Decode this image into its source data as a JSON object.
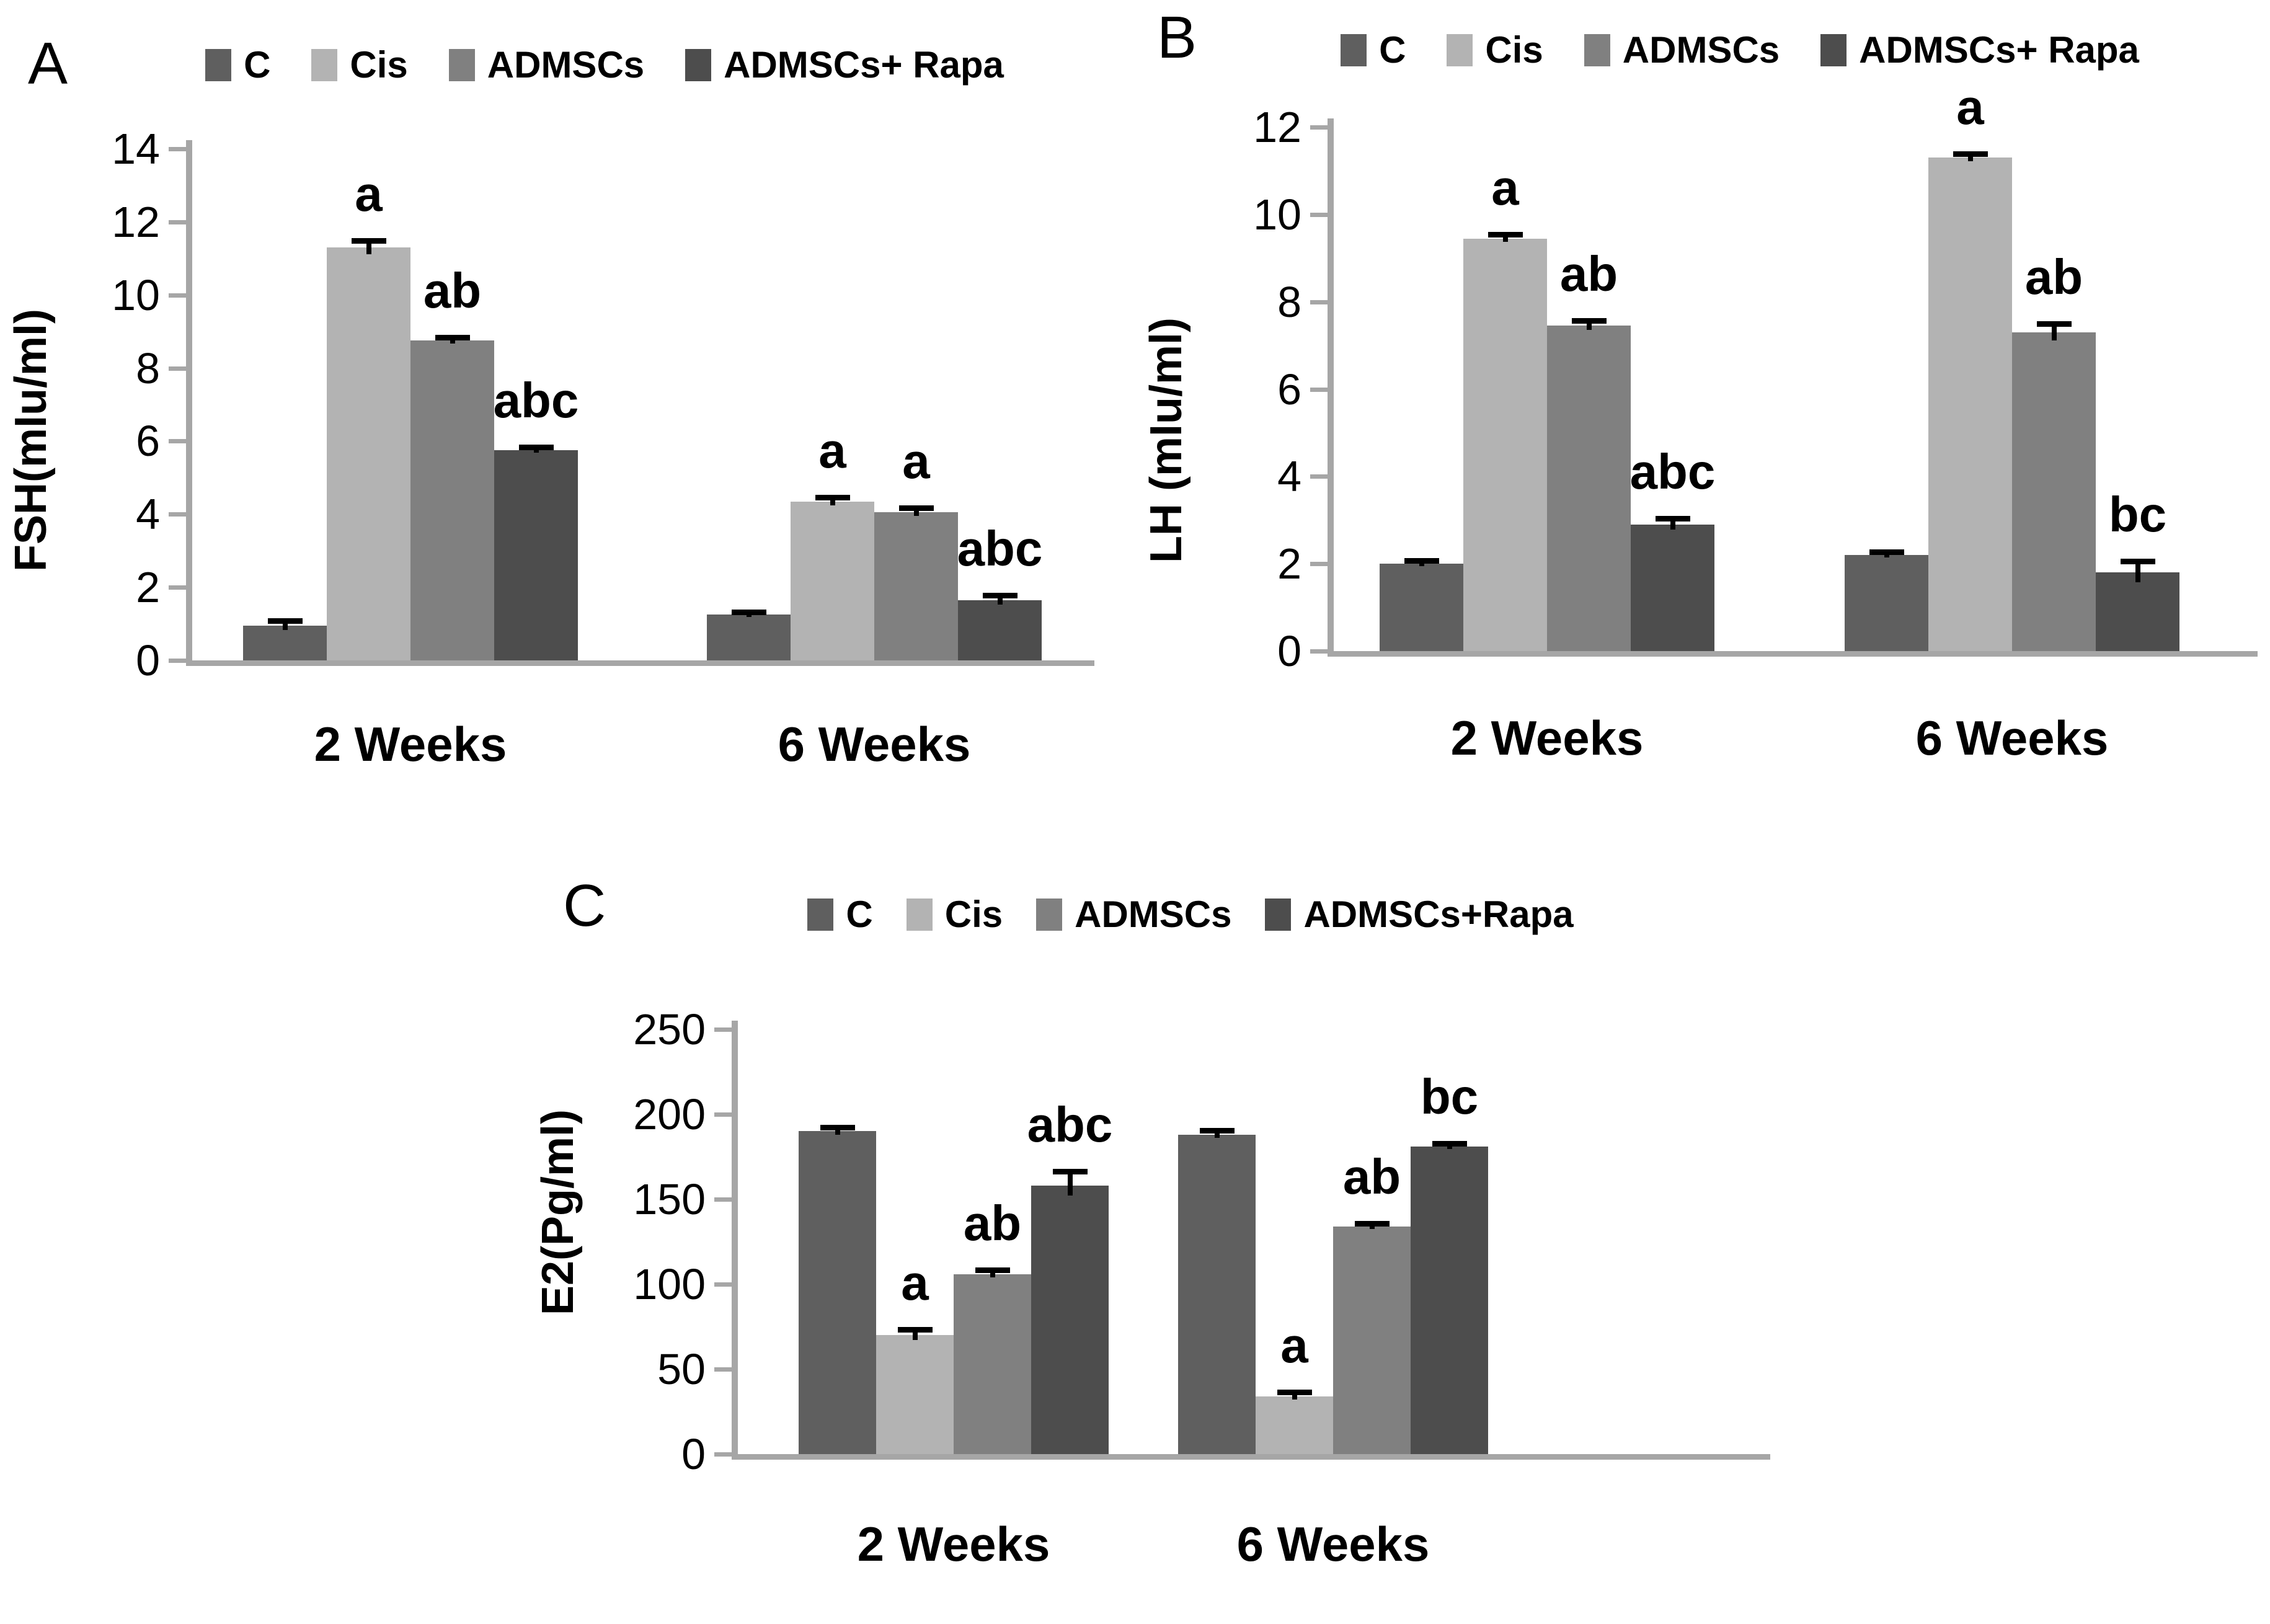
{
  "colors": {
    "axis": "#a6a6a6",
    "error_bar": "#000000",
    "series_c": "#5f5f5f",
    "series_cis": "#b3b3b3",
    "series_admscs": "#808080",
    "series_admscs_rapa": "#4d4d4d"
  },
  "chart_data": [
    {
      "type": "bar",
      "panel_letter": "A",
      "ylabel": "FSH(mIu/ml)",
      "categories": [
        "2 Weeks",
        "6 Weeks"
      ],
      "ylim": [
        0,
        14
      ],
      "ytick_step": 2,
      "grid": false,
      "legend_position": "top",
      "series": [
        {
          "name": "C",
          "color": "#5f5f5f",
          "values": [
            0.95,
            1.25
          ],
          "errors": [
            0.12,
            0.06
          ],
          "sig": [
            "",
            ""
          ]
        },
        {
          "name": "Cis",
          "color": "#b3b3b3",
          "values": [
            11.3,
            4.35
          ],
          "errors": [
            0.18,
            0.1
          ],
          "sig": [
            "a",
            "a"
          ]
        },
        {
          "name": "ADMSCs",
          "color": "#808080",
          "values": [
            8.75,
            4.05
          ],
          "errors": [
            0.08,
            0.1
          ],
          "sig": [
            "ab",
            "a"
          ]
        },
        {
          "name": "ADMSCs+ Rapa",
          "color": "#4d4d4d",
          "values": [
            5.75,
            1.65
          ],
          "errors": [
            0.07,
            0.12
          ],
          "sig": [
            "abc",
            "abc"
          ]
        }
      ]
    },
    {
      "type": "bar",
      "panel_letter": "B",
      "ylabel": "LH (mIu/ml)",
      "categories": [
        "2 Weeks",
        "6 Weeks"
      ],
      "ylim": [
        0,
        12
      ],
      "ytick_step": 2,
      "grid": false,
      "legend_position": "top",
      "series": [
        {
          "name": "C",
          "color": "#5f5f5f",
          "values": [
            2.0,
            2.2
          ],
          "errors": [
            0.06,
            0.06
          ],
          "sig": [
            "",
            ""
          ]
        },
        {
          "name": "Cis",
          "color": "#b3b3b3",
          "values": [
            9.45,
            11.3
          ],
          "errors": [
            0.08,
            0.08
          ],
          "sig": [
            "a",
            "a"
          ]
        },
        {
          "name": "ADMSCs",
          "color": "#808080",
          "values": [
            7.45,
            7.3
          ],
          "errors": [
            0.1,
            0.18
          ],
          "sig": [
            "ab",
            "ab"
          ]
        },
        {
          "name": "ADMSCs+ Rapa",
          "color": "#4d4d4d",
          "values": [
            2.9,
            1.8
          ],
          "errors": [
            0.12,
            0.25
          ],
          "sig": [
            "abc",
            "bc"
          ]
        }
      ]
    },
    {
      "type": "bar",
      "panel_letter": "C",
      "ylabel": "E2(Pg/ml)",
      "categories": [
        "2 Weeks",
        "6 Weeks"
      ],
      "ylim": [
        0,
        250
      ],
      "ytick_step": 50,
      "grid": false,
      "legend_position": "top",
      "series": [
        {
          "name": "C",
          "color": "#5f5f5f",
          "values": [
            190,
            188
          ],
          "errors": [
            2,
            2
          ],
          "sig": [
            "",
            ""
          ]
        },
        {
          "name": "Cis",
          "color": "#b3b3b3",
          "values": [
            70,
            34
          ],
          "errors": [
            3,
            2
          ],
          "sig": [
            "a",
            "a"
          ]
        },
        {
          "name": "ADMSCs",
          "color": "#808080",
          "values": [
            106,
            134
          ],
          "errors": [
            2,
            1.5
          ],
          "sig": [
            "ab",
            "ab"
          ]
        },
        {
          "name": "ADMSCs+Rapa",
          "color": "#4d4d4d",
          "values": [
            158,
            181
          ],
          "errors": [
            8,
            1.5
          ],
          "sig": [
            "abc",
            "bc"
          ]
        }
      ]
    }
  ]
}
